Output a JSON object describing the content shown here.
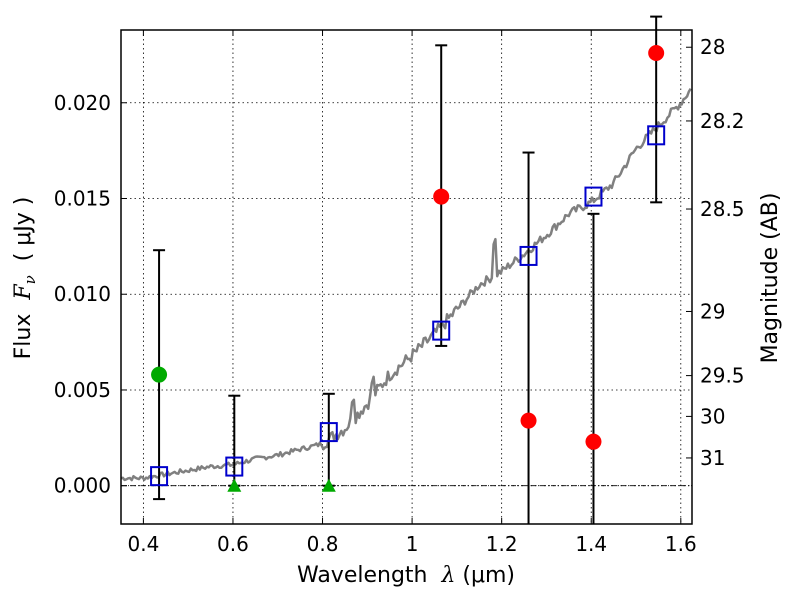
{
  "chart_data": {
    "type": "scatter",
    "xlabel": {
      "pre": "Wavelength  ",
      "sym": "λ",
      "post": " (μm)"
    },
    "ylabel": {
      "pre": "Flux  ",
      "sym": "F",
      "sub": "ν",
      "post": "  ( μJy )"
    },
    "y2label": "Magnitude (AB)",
    "xlim": [
      0.35,
      1.625
    ],
    "ylim": [
      -0.002,
      0.0238
    ],
    "grid": true,
    "x_ticks": [
      0.4,
      0.6,
      0.8,
      1.0,
      1.2,
      1.4,
      1.6
    ],
    "x_tick_labels": [
      "0.4",
      "0.6",
      "0.8",
      "1",
      "1.2",
      "1.4",
      "1.6"
    ],
    "y_ticks": [
      0.0,
      0.005,
      0.01,
      0.015,
      0.02
    ],
    "y_tick_labels": [
      "0.000",
      "0.005",
      "0.010",
      "0.015",
      "0.020"
    ],
    "y2_ticks": [
      {
        "label": "28",
        "flux": 0.0229
      },
      {
        "label": "28.2",
        "flux": 0.01905
      },
      {
        "label": "28.5",
        "flux": 0.01445
      },
      {
        "label": "29",
        "flux": 0.0091
      },
      {
        "label": "29.5",
        "flux": 0.00575
      },
      {
        "label": "30",
        "flux": 0.00362
      },
      {
        "label": "31",
        "flux": 0.00145
      }
    ],
    "zero_line": 0.0,
    "series": [
      {
        "style": "red-circle",
        "color": "#ff0000",
        "points": [
          [
            1.065,
            0.0151
          ],
          [
            1.26,
            0.0034
          ],
          [
            1.405,
            0.0023
          ],
          [
            1.545,
            0.0226
          ]
        ]
      },
      {
        "style": "green-circle",
        "color": "#00aa00",
        "points": [
          [
            0.435,
            0.0058
          ]
        ]
      },
      {
        "style": "green-triangle",
        "color": "#00aa00",
        "points": [
          [
            0.603,
            0.0
          ],
          [
            0.814,
            0.0
          ]
        ]
      },
      {
        "style": "blue-square",
        "color": "#0000cc",
        "points": [
          [
            0.435,
            0.0005
          ],
          [
            0.603,
            0.001
          ],
          [
            0.814,
            0.0028
          ],
          [
            1.065,
            0.0081
          ],
          [
            1.26,
            0.012
          ],
          [
            1.405,
            0.0151
          ],
          [
            1.545,
            0.0183
          ]
        ]
      }
    ],
    "error_bars": [
      {
        "x": 0.435,
        "low": -0.0007,
        "high": 0.0123
      },
      {
        "x": 0.603,
        "low": 0.0,
        "high": 0.0047
      },
      {
        "x": 0.814,
        "low": 0.0,
        "high": 0.0048
      },
      {
        "x": 1.065,
        "low": 0.0073,
        "high": 0.023
      },
      {
        "x": 1.26,
        "low": -0.0025,
        "high": 0.0174
      },
      {
        "x": 1.405,
        "low": -0.0025,
        "high": 0.0142
      },
      {
        "x": 1.545,
        "low": 0.0148,
        "high": 0.0245
      }
    ],
    "model_spectrum": {
      "color": "#808080",
      "anchors": [
        [
          0.35,
          0.0004
        ],
        [
          0.4,
          0.0004
        ],
        [
          0.45,
          0.0006
        ],
        [
          0.5,
          0.0008
        ],
        [
          0.55,
          0.001
        ],
        [
          0.6,
          0.0011
        ],
        [
          0.65,
          0.0014
        ],
        [
          0.7,
          0.0016
        ],
        [
          0.75,
          0.0019
        ],
        [
          0.8,
          0.0022
        ],
        [
          0.85,
          0.003
        ],
        [
          0.9,
          0.0043
        ],
        [
          0.95,
          0.0058
        ],
        [
          1.0,
          0.0068
        ],
        [
          1.05,
          0.0079
        ],
        [
          1.1,
          0.0092
        ],
        [
          1.15,
          0.0105
        ],
        [
          1.2,
          0.0112
        ],
        [
          1.25,
          0.0121
        ],
        [
          1.3,
          0.0131
        ],
        [
          1.35,
          0.0142
        ],
        [
          1.4,
          0.0148
        ],
        [
          1.45,
          0.0158
        ],
        [
          1.5,
          0.0176
        ],
        [
          1.55,
          0.0188
        ],
        [
          1.6,
          0.02
        ],
        [
          1.625,
          0.0208
        ]
      ]
    }
  }
}
